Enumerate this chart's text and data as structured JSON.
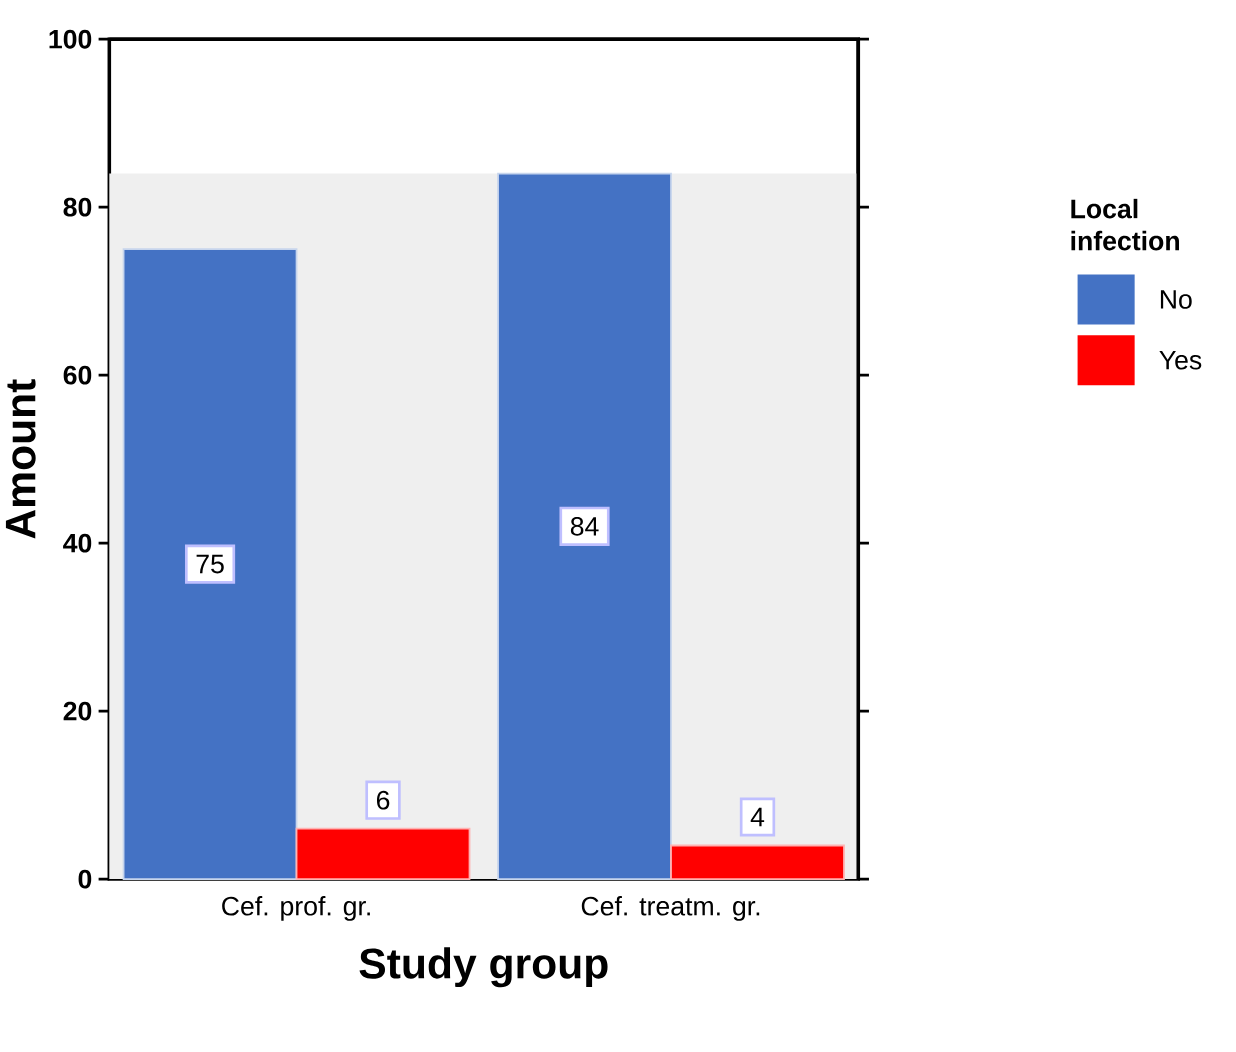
{
  "chart_data": {
    "type": "bar",
    "xlabel": "Study group",
    "ylabel": "Amount",
    "legend_title": "Local infection",
    "categories": [
      "Cef. prof. gr.",
      "Cef. treatm. gr."
    ],
    "series": [
      {
        "name": "No",
        "color": "#4472c4",
        "values": [
          75,
          84
        ]
      },
      {
        "name": "Yes",
        "color": "#ff0000",
        "values": [
          6,
          4
        ]
      }
    ],
    "ylim": [
      0,
      100
    ],
    "yticks": [
      0,
      20,
      40,
      60,
      80,
      100
    ],
    "data_labels": true,
    "legend": "right",
    "bands": [
      {
        "axis": "y",
        "from": 0,
        "to": 84,
        "color": "#efefef"
      }
    ]
  }
}
